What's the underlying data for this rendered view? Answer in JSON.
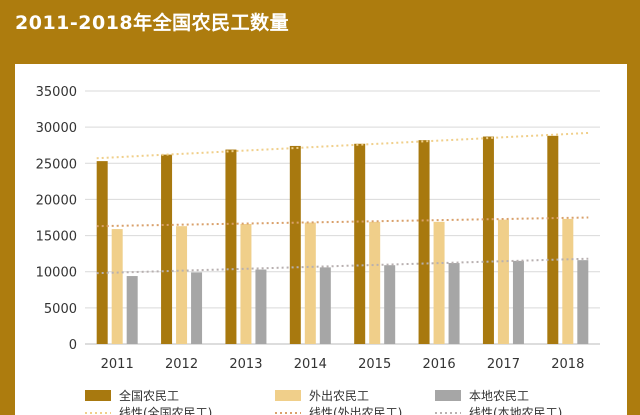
{
  "title": "2011-2018年全国农民工数量",
  "colors": {
    "background": "#ad7c0e",
    "panel": "#ffffff",
    "series": [
      "#a8790f",
      "#f0cf8a",
      "#a6a6a6"
    ],
    "trend": [
      "#f0cf8a",
      "#d9a06a",
      "#b8b0b0"
    ]
  },
  "chart_data": {
    "type": "bar",
    "title": "2011-2018年全国农民工数量",
    "xlabel": "",
    "ylabel": "",
    "ylim": [
      0,
      35000
    ],
    "yticks": [
      0,
      5000,
      10000,
      15000,
      20000,
      25000,
      30000,
      35000
    ],
    "categories": [
      "2011",
      "2012",
      "2013",
      "2014",
      "2015",
      "2016",
      "2017",
      "2018"
    ],
    "series": [
      {
        "name": "全国农民工",
        "values": [
          25300,
          26200,
          26900,
          27400,
          27700,
          28200,
          28700,
          28800
        ]
      },
      {
        "name": "外出农民工",
        "values": [
          15900,
          16300,
          16600,
          16800,
          16900,
          16900,
          17200,
          17300
        ]
      },
      {
        "name": "本地农民工",
        "values": [
          9400,
          9900,
          10300,
          10600,
          10900,
          11200,
          11500,
          11600
        ]
      }
    ],
    "trendlines": [
      {
        "name": "线性(全国农民工)",
        "start": 25700,
        "end": 29200
      },
      {
        "name": "线性(外出农民工)",
        "start": 16300,
        "end": 17500
      },
      {
        "name": "线性(本地农民工)",
        "start": 9800,
        "end": 11800
      }
    ],
    "grid": true,
    "legend": "bottom"
  }
}
